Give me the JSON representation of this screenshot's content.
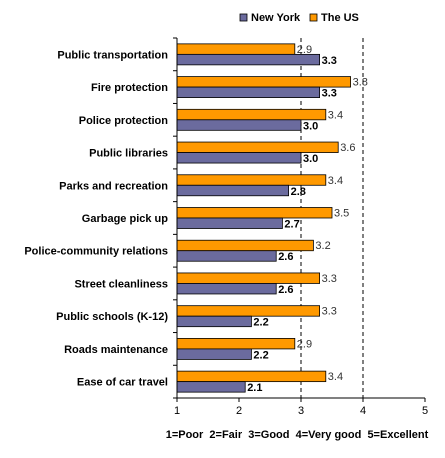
{
  "chart_data": {
    "type": "bar",
    "orientation": "horizontal",
    "categories": [
      "Public transportation",
      "Fire protection",
      "Police protection",
      "Public libraries",
      "Parks and recreation",
      "Garbage pick up",
      "Police-community relations",
      "Street cleanliness",
      "Public schools (K-12)",
      "Roads maintenance",
      "Ease of car travel"
    ],
    "series": [
      {
        "name": "New York",
        "color": "#6b6b9e",
        "values": [
          3.3,
          3.3,
          3.0,
          3.0,
          2.8,
          2.7,
          2.6,
          2.6,
          2.2,
          2.2,
          2.1
        ],
        "labels": [
          "3.3",
          "3.3",
          "3.0",
          "3.0",
          "2.8",
          "2.7",
          "2.6",
          "2.6",
          "2.2",
          "2.2",
          "2.1"
        ]
      },
      {
        "name": "The US",
        "color": "#ff9900",
        "values": [
          2.9,
          3.8,
          3.4,
          3.6,
          3.4,
          3.5,
          3.2,
          3.3,
          3.3,
          2.9,
          3.4
        ],
        "labels": [
          "2.9",
          "3.8",
          "3.4",
          "3.6",
          "3.4",
          "3.5",
          "3.2",
          "3.3",
          "3.3",
          "2.9",
          "3.4"
        ]
      }
    ],
    "xlim": [
      1,
      5
    ],
    "xticks": [
      "1",
      "2",
      "3",
      "4",
      "5"
    ],
    "reference_lines": [
      3,
      4
    ],
    "legend_position": "top-right",
    "scale_note": "1=Poor  2=Fair  3=Good  4=Very good  5=Excellent"
  }
}
